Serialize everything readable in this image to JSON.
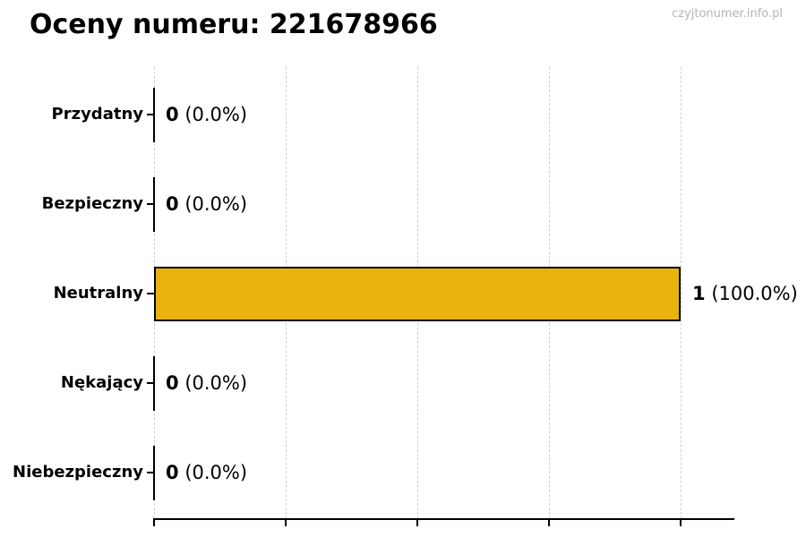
{
  "page": {
    "title": "Oceny numeru: 221678966",
    "watermark": "czyjtonumer.info.pl"
  },
  "chart_data": {
    "type": "bar",
    "orientation": "horizontal",
    "title": "Oceny numeru: 221678966",
    "xlabel": "",
    "ylabel": "",
    "categories": [
      "Przydatny",
      "Bezpieczny",
      "Neutralny",
      "Nękający",
      "Niebezpieczny"
    ],
    "values": [
      0,
      0,
      1,
      0,
      0
    ],
    "annotations": [
      {
        "count": "0",
        "percent": "(0.0%)"
      },
      {
        "count": "0",
        "percent": "(0.0%)"
      },
      {
        "count": "1",
        "percent": "(100.0%)"
      },
      {
        "count": "0",
        "percent": "(0.0%)"
      },
      {
        "count": "0",
        "percent": "(0.0%)"
      }
    ],
    "xlim": [
      0,
      1
    ],
    "xticks": [
      0,
      0.25,
      0.5,
      0.75,
      1.0
    ],
    "xtick_labels": [
      "",
      "",
      "",
      "",
      ""
    ],
    "grid": true,
    "legend": "none",
    "bar_color": "#E9B30E",
    "bar_edge_color": "#000000",
    "gridline_color": "#cfcfcf",
    "watermark_color": "#b4b4b4"
  }
}
